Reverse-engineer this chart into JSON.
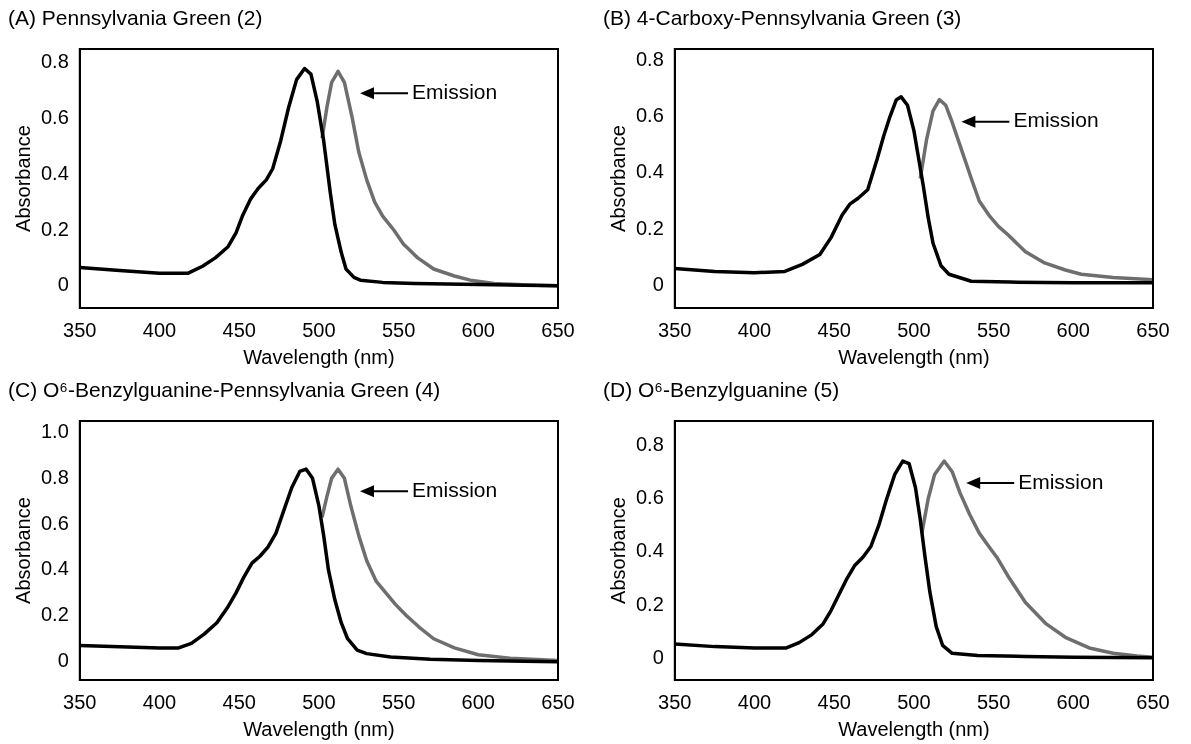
{
  "chart_data": [
    {
      "type": "line",
      "title": "(A) Pennsylvania Green (2)",
      "xlabel": "Wavelength (nm)",
      "ylabel": "Absorbance",
      "xlim": [
        350,
        650
      ],
      "xticks": [
        350,
        400,
        450,
        500,
        550,
        600,
        650
      ],
      "ylim": [
        -0.08,
        0.85
      ],
      "yticks": [
        0,
        0.2,
        0.4,
        0.6,
        0.8
      ],
      "series": [
        {
          "color": "#000000",
          "x": [
            350,
            375,
            400,
            418,
            427,
            435,
            443,
            448,
            452,
            457,
            462,
            467,
            471,
            476,
            481,
            486,
            491,
            495,
            499,
            503,
            507,
            510,
            514,
            517,
            522,
            526,
            540,
            560,
            600,
            650
          ],
          "values": [
            0.065,
            0.055,
            0.045,
            0.045,
            0.07,
            0.1,
            0.14,
            0.19,
            0.25,
            0.31,
            0.35,
            0.38,
            0.42,
            0.52,
            0.64,
            0.74,
            0.78,
            0.76,
            0.66,
            0.52,
            0.34,
            0.22,
            0.12,
            0.06,
            0.03,
            0.02,
            0.012,
            0.008,
            0.004,
            0.0
          ]
        },
        {
          "name": "Emission",
          "color": "#6e6e6e",
          "x": [
            502,
            505,
            508,
            512,
            516,
            521,
            525,
            530,
            535,
            540,
            547,
            553,
            562,
            572,
            585,
            595,
            610,
            630,
            650
          ],
          "values": [
            0.53,
            0.64,
            0.73,
            0.77,
            0.73,
            0.6,
            0.48,
            0.38,
            0.3,
            0.25,
            0.2,
            0.15,
            0.1,
            0.06,
            0.035,
            0.02,
            0.008,
            0.003,
            0.0
          ]
        }
      ]
    },
    {
      "type": "line",
      "title": "(B) 4-Carboxy-Pennsylvania Green (3)",
      "xlabel": "Wavelength (nm)",
      "ylabel": "Absorbance",
      "xlim": [
        350,
        650
      ],
      "xticks": [
        350,
        400,
        450,
        500,
        550,
        600,
        650
      ],
      "ylim": [
        -0.08,
        0.84
      ],
      "yticks": [
        0,
        0.2,
        0.4,
        0.6,
        0.8
      ],
      "series": [
        {
          "color": "#000000",
          "x": [
            350,
            375,
            400,
            419,
            430,
            441,
            448,
            455,
            460,
            465,
            471,
            477,
            481,
            485,
            489,
            492,
            496,
            500,
            503,
            506,
            509,
            512,
            517,
            522,
            536,
            560,
            600,
            650
          ],
          "values": [
            0.06,
            0.05,
            0.045,
            0.05,
            0.075,
            0.11,
            0.17,
            0.25,
            0.29,
            0.31,
            0.34,
            0.45,
            0.53,
            0.6,
            0.66,
            0.67,
            0.64,
            0.55,
            0.45,
            0.35,
            0.24,
            0.15,
            0.07,
            0.04,
            0.015,
            0.012,
            0.01,
            0.01
          ]
        },
        {
          "name": "Emission",
          "color": "#6e6e6e",
          "x": [
            504,
            508,
            512,
            516,
            520,
            524,
            530,
            536,
            541,
            547,
            553,
            559,
            570,
            582,
            595,
            605,
            625,
            650
          ],
          "values": [
            0.38,
            0.52,
            0.62,
            0.66,
            0.64,
            0.58,
            0.48,
            0.38,
            0.3,
            0.25,
            0.21,
            0.18,
            0.12,
            0.08,
            0.055,
            0.04,
            0.028,
            0.02
          ]
        }
      ]
    },
    {
      "type": "line",
      "title": "(C) O⁶-Benzylguanine-Pennsylvania Green (4)",
      "xlabel": "Wavelength (nm)",
      "ylabel": "Absorbance",
      "xlim": [
        350,
        650
      ],
      "xticks": [
        350,
        400,
        450,
        500,
        550,
        600,
        650
      ],
      "ylim": [
        -0.08,
        1.05
      ],
      "yticks": [
        0,
        0.2,
        0.4,
        0.6,
        {
          "value": 0.8,
          "label": "0.8"
        },
        {
          "value": 1,
          "label": "1.0"
        }
      ],
      "series": [
        {
          "color": "#000000",
          "x": [
            350,
            375,
            400,
            412,
            420,
            428,
            436,
            443,
            448,
            453,
            458,
            463,
            468,
            473,
            478,
            483,
            488,
            492,
            496,
            500,
            503,
            506,
            510,
            514,
            518,
            524,
            530,
            545,
            570,
            600,
            650
          ],
          "values": [
            0.07,
            0.065,
            0.06,
            0.06,
            0.08,
            0.12,
            0.17,
            0.24,
            0.3,
            0.37,
            0.43,
            0.46,
            0.5,
            0.56,
            0.66,
            0.76,
            0.83,
            0.84,
            0.8,
            0.68,
            0.55,
            0.4,
            0.27,
            0.17,
            0.1,
            0.05,
            0.035,
            0.02,
            0.01,
            0.005,
            0.0
          ]
        },
        {
          "name": "Emission",
          "color": "#6e6e6e",
          "x": [
            502,
            505,
            508,
            512,
            516,
            520,
            525,
            530,
            536,
            542,
            548,
            555,
            563,
            572,
            585,
            600,
            620,
            650
          ],
          "values": [
            0.63,
            0.72,
            0.8,
            0.84,
            0.8,
            0.68,
            0.55,
            0.44,
            0.35,
            0.3,
            0.25,
            0.2,
            0.15,
            0.1,
            0.06,
            0.03,
            0.015,
            0.005
          ]
        }
      ]
    },
    {
      "type": "line",
      "title": "(D) O⁶-Benzylguanine (5)",
      "xlabel": "Wavelength (nm)",
      "ylabel": "Absorbance",
      "xlim": [
        350,
        650
      ],
      "xticks": [
        350,
        400,
        450,
        500,
        550,
        600,
        650
      ],
      "ylim": [
        -0.08,
        0.89
      ],
      "yticks": [
        0,
        0.2,
        0.4,
        0.6,
        0.8
      ],
      "series": [
        {
          "color": "#000000",
          "x": [
            350,
            375,
            400,
            420,
            428,
            436,
            443,
            448,
            453,
            458,
            463,
            468,
            473,
            478,
            483,
            488,
            493,
            497,
            501,
            504,
            507,
            510,
            514,
            518,
            524,
            540,
            570,
            600,
            650
          ],
          "values": [
            0.055,
            0.045,
            0.04,
            0.04,
            0.06,
            0.09,
            0.13,
            0.18,
            0.24,
            0.3,
            0.35,
            0.38,
            0.42,
            0.5,
            0.6,
            0.69,
            0.74,
            0.73,
            0.64,
            0.52,
            0.38,
            0.25,
            0.12,
            0.05,
            0.02,
            0.012,
            0.008,
            0.005,
            0.003
          ]
        },
        {
          "name": "Emission",
          "color": "#6e6e6e",
          "x": [
            505,
            509,
            513,
            519,
            524,
            529,
            535,
            541,
            547,
            552,
            560,
            570,
            583,
            595,
            610,
            625,
            640,
            650
          ],
          "values": [
            0.47,
            0.6,
            0.69,
            0.74,
            0.7,
            0.62,
            0.54,
            0.47,
            0.42,
            0.38,
            0.3,
            0.21,
            0.13,
            0.08,
            0.04,
            0.02,
            0.01,
            0.005
          ]
        }
      ]
    }
  ]
}
